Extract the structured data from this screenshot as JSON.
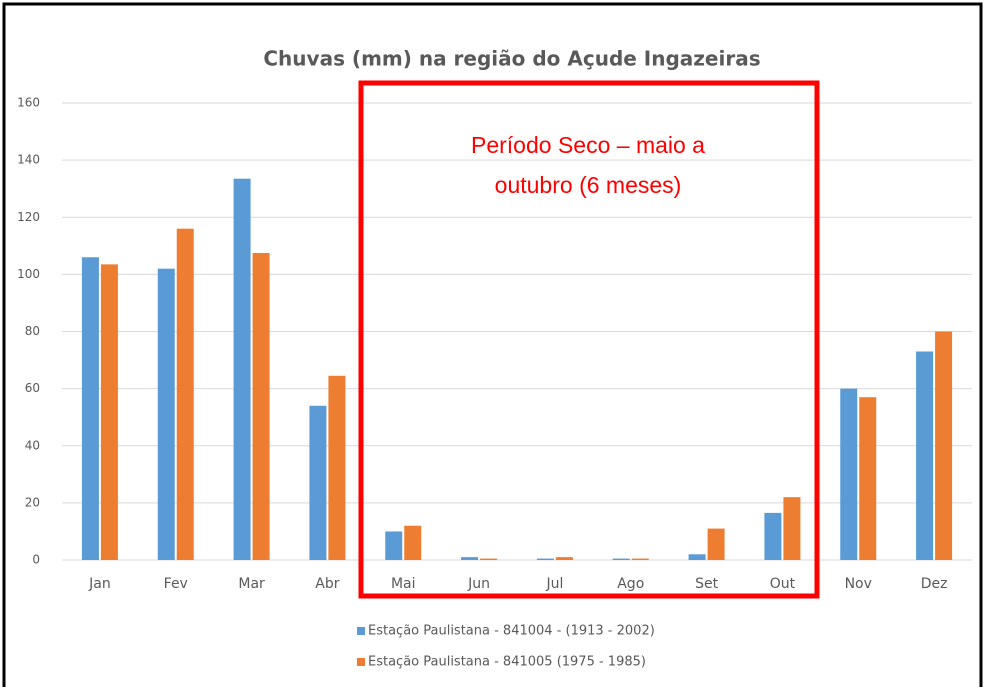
{
  "chart_data": {
    "type": "bar",
    "title": "Chuvas (mm) na região do Açude Ingazeiras",
    "categories": [
      "Jan",
      "Fev",
      "Mar",
      "Abr",
      "Mai",
      "Jun",
      "Jul",
      "Ago",
      "Set",
      "Out",
      "Nov",
      "Dez"
    ],
    "series": [
      {
        "name": "Estação Paulistana - 841004 - (1913 - 2002)",
        "color": "#5b9bd5",
        "values": [
          106,
          102,
          133.5,
          54,
          10,
          1,
          0.5,
          0.5,
          2,
          16.5,
          60,
          73
        ]
      },
      {
        "name": "Estação Paulistana - 841005 (1975 - 1985)",
        "color": "#ed7d31",
        "values": [
          103.5,
          116,
          107.5,
          64.5,
          12,
          0.5,
          1,
          0.5,
          11,
          22,
          57,
          80
        ]
      }
    ],
    "ylim": [
      0,
      160
    ],
    "yticks": [
      0,
      20,
      40,
      60,
      80,
      100,
      120,
      140,
      160
    ],
    "grid": true,
    "annotation": {
      "lines": [
        "Período Seco – maio a",
        "outubro (6 meses)"
      ],
      "color": "#ff0000"
    }
  }
}
